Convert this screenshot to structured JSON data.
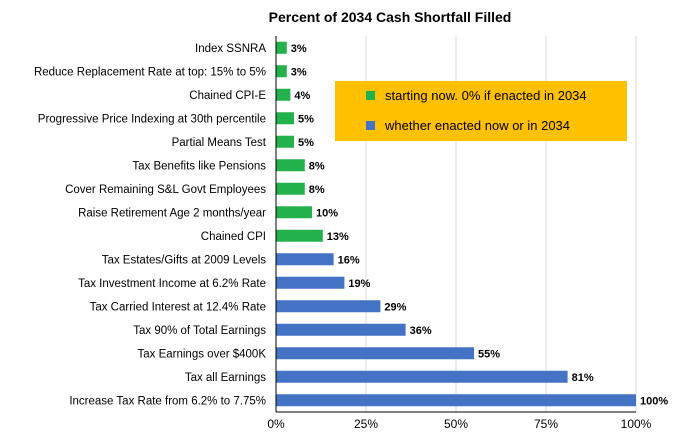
{
  "chart_data": {
    "type": "bar",
    "orientation": "horizontal",
    "title": "Percent of 2034 Cash Shortfall Filled",
    "xlabel": "",
    "ylabel": "",
    "xlim": [
      0,
      100
    ],
    "x_ticks": [
      "0%",
      "25%",
      "50%",
      "75%",
      "100%"
    ],
    "grid": "vertical",
    "legend_position": "top-right",
    "value_suffix": "%",
    "categories": [
      "Index SSNRA",
      "Reduce Replacement Rate at top: 15% to 5%",
      "Chained CPI-E",
      "Progressive Price Indexing at 30th percentile",
      "Partial Means Test",
      "Tax Benefits like Pensions",
      "Cover Remaining S&L Govt Employees",
      "Raise Retirement Age 2 months/year",
      "Chained CPI",
      "Tax Estates/Gifts at 2009 Levels",
      "Tax Investment Income at 6.2% Rate",
      "Tax Carried Interest at 12.4% Rate",
      "Tax 90% of Total Earnings",
      "Tax Earnings over $400K",
      "Tax all Earnings",
      "Increase Tax Rate from 6.2% to 7.75%"
    ],
    "values": [
      3,
      3,
      4,
      5,
      5,
      8,
      8,
      10,
      13,
      16,
      19,
      29,
      36,
      55,
      81,
      100
    ],
    "bar_group": [
      "green",
      "green",
      "green",
      "green",
      "green",
      "green",
      "green",
      "green",
      "green",
      "blue",
      "blue",
      "blue",
      "blue",
      "blue",
      "blue",
      "blue"
    ],
    "legend": [
      {
        "label": "starting now. 0% if enacted in 2034",
        "color": "#22b14c",
        "group": "green"
      },
      {
        "label": "whether enacted now or in 2034",
        "color": "#4472c4",
        "group": "blue"
      }
    ],
    "colors": {
      "green": "#22b14c",
      "blue": "#4472c4",
      "legend_background": "#ffc000",
      "grid": "#d9d9d9",
      "axis": "#000000"
    }
  }
}
